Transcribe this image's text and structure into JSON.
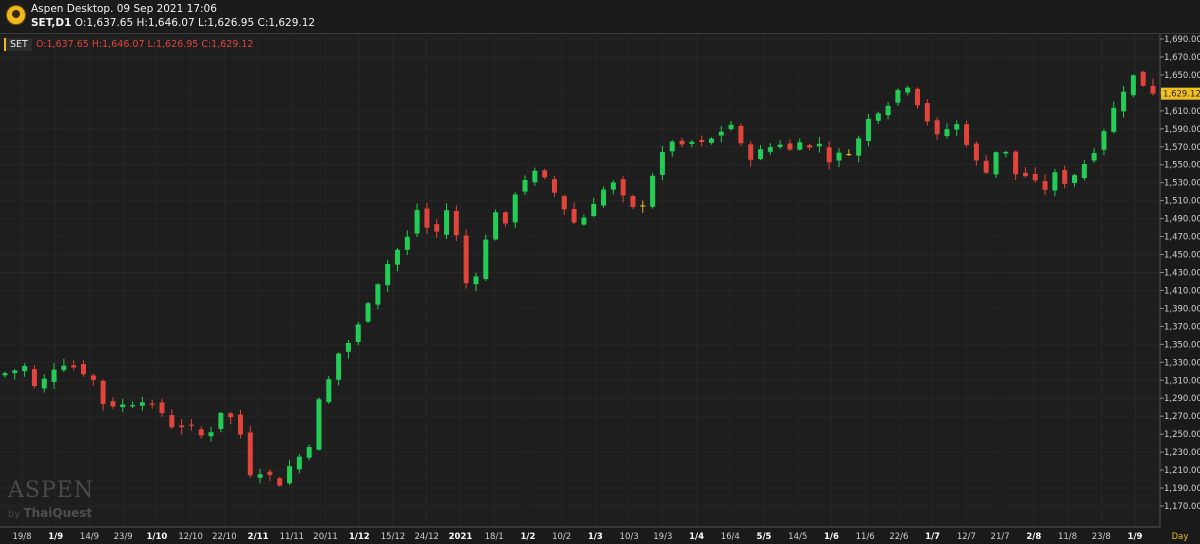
{
  "window": {
    "title": "Aspen Desktop. 09 Sep 2021 17:06",
    "symbol_label": "SET,D1",
    "ohlc_text": "O:1,637.65 H:1,646.07 L:1,626.95 C:1,629.12"
  },
  "legend": {
    "symbol": "SET",
    "ohlc_text": "O:1,637.65  H:1,646.07  L:1,626.95  C:1,629.12"
  },
  "watermark": {
    "brand": "ASPEN",
    "by": "by",
    "vendor": "ThaiQuest"
  },
  "colors": {
    "up": "#22cc55",
    "down": "#e0443a",
    "doji": "#e8b41c",
    "background": "#1e1e1e",
    "grid": "#262626",
    "last_price_bg": "#f0c020"
  },
  "chart_data": {
    "type": "candlestick",
    "symbol": "SET",
    "timeframe": "Day",
    "ylim": [
      1150,
      1700
    ],
    "y_ticks": [
      "1,690.00",
      "1,670.00",
      "1,650.00",
      "1,630.00",
      "1,610.00",
      "1,590.00",
      "1,570.00",
      "1,550.00",
      "1,530.00",
      "1,510.00",
      "1,490.00",
      "1,470.00",
      "1,450.00",
      "1,430.00",
      "1,410.00",
      "1,390.00",
      "1,370.00",
      "1,350.00",
      "1,330.00",
      "1,310.00",
      "1,290.00",
      "1,270.00",
      "1,250.00",
      "1,230.00",
      "1,210.00",
      "1,190.00",
      "1,170.00"
    ],
    "x_ticks": [
      {
        "label": "19/8",
        "bold": false
      },
      {
        "label": "1/9",
        "bold": true
      },
      {
        "label": "14/9",
        "bold": false
      },
      {
        "label": "23/9",
        "bold": false
      },
      {
        "label": "1/10",
        "bold": true
      },
      {
        "label": "12/10",
        "bold": false
      },
      {
        "label": "22/10",
        "bold": false
      },
      {
        "label": "2/11",
        "bold": true
      },
      {
        "label": "11/11",
        "bold": false
      },
      {
        "label": "20/11",
        "bold": false
      },
      {
        "label": "1/12",
        "bold": true
      },
      {
        "label": "15/12",
        "bold": false
      },
      {
        "label": "24/12",
        "bold": false
      },
      {
        "label": "2021",
        "bold": true
      },
      {
        "label": "18/1",
        "bold": false
      },
      {
        "label": "1/2",
        "bold": true
      },
      {
        "label": "10/2",
        "bold": false
      },
      {
        "label": "1/3",
        "bold": true
      },
      {
        "label": "10/3",
        "bold": false
      },
      {
        "label": "19/3",
        "bold": false
      },
      {
        "label": "1/4",
        "bold": true
      },
      {
        "label": "16/4",
        "bold": false
      },
      {
        "label": "5/5",
        "bold": true
      },
      {
        "label": "14/5",
        "bold": false
      },
      {
        "label": "1/6",
        "bold": true
      },
      {
        "label": "11/6",
        "bold": false
      },
      {
        "label": "22/6",
        "bold": false
      },
      {
        "label": "1/7",
        "bold": true
      },
      {
        "label": "12/7",
        "bold": false
      },
      {
        "label": "21/7",
        "bold": false
      },
      {
        "label": "2/8",
        "bold": true
      },
      {
        "label": "11/8",
        "bold": false
      },
      {
        "label": "23/8",
        "bold": false
      },
      {
        "label": "1/9",
        "bold": true
      }
    ],
    "x_axis_unit_label": "Day",
    "last_price": "1,629.12",
    "last_ohlc": {
      "open": 1637.65,
      "high": 1646.07,
      "low": 1626.95,
      "close": 1629.12
    },
    "close_path": [
      [
        0,
        1318
      ],
      [
        2,
        1325
      ],
      [
        3,
        1302
      ],
      [
        4,
        1310
      ],
      [
        5,
        1325
      ],
      [
        6,
        1330
      ],
      [
        8,
        1320
      ],
      [
        9,
        1310
      ],
      [
        10,
        1285
      ],
      [
        12,
        1282
      ],
      [
        14,
        1290
      ],
      [
        15,
        1278
      ],
      [
        16,
        1274
      ],
      [
        17,
        1260
      ],
      [
        18,
        1260
      ],
      [
        19,
        1255
      ],
      [
        20,
        1248
      ],
      [
        21,
        1255
      ],
      [
        22,
        1276
      ],
      [
        23,
        1268
      ],
      [
        24,
        1250
      ],
      [
        25,
        1208
      ],
      [
        26,
        1210
      ],
      [
        27,
        1203
      ],
      [
        28,
        1196
      ],
      [
        29,
        1214
      ],
      [
        30,
        1225
      ],
      [
        31,
        1240
      ],
      [
        32,
        1286
      ],
      [
        33,
        1310
      ],
      [
        34,
        1340
      ],
      [
        35,
        1352
      ],
      [
        36,
        1370
      ],
      [
        37,
        1400
      ],
      [
        38,
        1420
      ],
      [
        39,
        1440
      ],
      [
        40,
        1455
      ],
      [
        41,
        1468
      ],
      [
        42,
        1500
      ],
      [
        43,
        1480
      ],
      [
        44,
        1475
      ],
      [
        45,
        1500
      ],
      [
        46,
        1470
      ],
      [
        47,
        1418
      ],
      [
        48,
        1430
      ],
      [
        49,
        1465
      ],
      [
        50,
        1500
      ],
      [
        51,
        1480
      ],
      [
        52,
        1520
      ],
      [
        53,
        1535
      ],
      [
        54,
        1540
      ],
      [
        55,
        1532
      ],
      [
        56,
        1519
      ],
      [
        57,
        1502
      ],
      [
        58,
        1486
      ],
      [
        59,
        1492
      ],
      [
        60,
        1510
      ],
      [
        61,
        1522
      ],
      [
        62,
        1528
      ],
      [
        63,
        1512
      ],
      [
        64,
        1500
      ],
      [
        65,
        1508
      ],
      [
        66,
        1540
      ],
      [
        67,
        1560
      ],
      [
        68,
        1578
      ],
      [
        69,
        1568
      ],
      [
        70,
        1575
      ],
      [
        71,
        1572
      ],
      [
        72,
        1578
      ],
      [
        73,
        1588
      ],
      [
        74,
        1595
      ],
      [
        75,
        1570
      ],
      [
        76,
        1560
      ],
      [
        77,
        1564
      ],
      [
        78,
        1570
      ],
      [
        79,
        1575
      ],
      [
        80,
        1566
      ],
      [
        81,
        1580
      ],
      [
        82,
        1568
      ],
      [
        83,
        1574
      ],
      [
        84,
        1556
      ],
      [
        85,
        1560
      ],
      [
        86,
        1566
      ],
      [
        87,
        1578
      ],
      [
        88,
        1600
      ],
      [
        89,
        1612
      ],
      [
        90,
        1620
      ],
      [
        91,
        1633
      ],
      [
        92,
        1640
      ],
      [
        93,
        1620
      ],
      [
        94,
        1600
      ],
      [
        95,
        1580
      ],
      [
        96,
        1590
      ],
      [
        97,
        1594
      ],
      [
        98,
        1576
      ],
      [
        99,
        1552
      ],
      [
        100,
        1545
      ],
      [
        101,
        1565
      ],
      [
        102,
        1562
      ],
      [
        103,
        1540
      ],
      [
        104,
        1538
      ],
      [
        105,
        1528
      ],
      [
        106,
        1524
      ],
      [
        107,
        1538
      ],
      [
        108,
        1532
      ],
      [
        109,
        1540
      ],
      [
        110,
        1552
      ],
      [
        111,
        1568
      ],
      [
        112,
        1590
      ],
      [
        113,
        1612
      ],
      [
        114,
        1635
      ],
      [
        115,
        1648
      ],
      [
        116,
        1640
      ],
      [
        117,
        1629.12
      ]
    ],
    "n_candles": 118
  }
}
